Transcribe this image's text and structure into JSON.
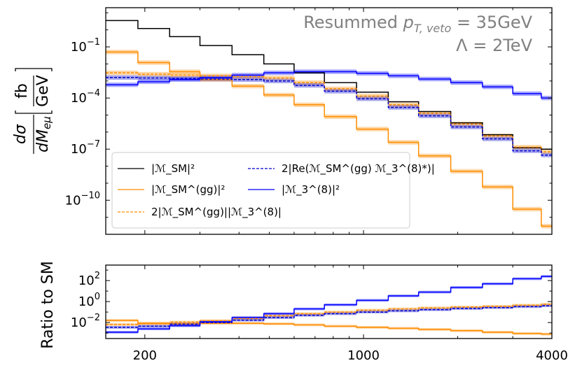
{
  "chart_data": [
    {
      "type": "line",
      "step": true,
      "xscale": "log",
      "yscale": "log",
      "xlim": [
        150,
        4000
      ],
      "ylim": [
        1e-12,
        20
      ],
      "annotation": [
        "Resummed p_T,veto = 35GeV",
        "Λ = 2TeV"
      ],
      "ylabel": "dσ/dM_eμ [fb/GeV]",
      "ytick_labels": [
        "10^-1",
        "10^-4",
        "10^-7",
        "10^-10"
      ],
      "legend_position": "lower-left",
      "bin_edges": [
        150,
        190,
        240,
        300,
        380,
        480,
        600,
        750,
        950,
        1200,
        1500,
        1900,
        2400,
        3000,
        3700,
        4000
      ],
      "series": [
        {
          "name": "|M_SM|^2",
          "color": "#000000",
          "dash": "solid",
          "band": false,
          "values": [
            3.5,
            1.2,
            0.4,
            0.12,
            0.035,
            0.01,
            0.003,
            0.0008,
            0.00022,
            6e-05,
            1.6e-05,
            3.5e-06,
            7e-07,
            1.2e-07,
            1e-07
          ]
        },
        {
          "name": "|M_SM^(gg)|^2",
          "color": "#ff8c00",
          "dash": "solid",
          "band": true,
          "values": [
            0.05,
            0.012,
            0.0035,
            0.0012,
            0.0005,
            0.00015,
            4e-05,
            8e-06,
            1.5e-06,
            2.5e-07,
            4e-08,
            5e-09,
            6e-10,
            3e-11,
            3e-12
          ]
        },
        {
          "name": "2|M_SM^(gg)||M_3^(8)|",
          "color": "#ff8c00",
          "dash": "dashed",
          "band": true,
          "values": [
            0.003,
            0.0025,
            0.0022,
            0.002,
            0.0018,
            0.0015,
            0.0008,
            0.00035,
            0.00013,
            4e-05,
            1.3e-05,
            3e-06,
            6e-07,
            1.3e-07,
            7e-08
          ]
        },
        {
          "name": "2|Re(M_SM^(gg) M_3^(8)*)|",
          "color": "#0000cc",
          "dash": "dashed",
          "band": true,
          "values": [
            0.0016,
            0.0015,
            0.0014,
            0.0013,
            0.0012,
            0.001,
            0.00055,
            0.00025,
            9e-05,
            2.8e-05,
            9e-06,
            2e-06,
            4e-07,
            8e-08,
            4.5e-08
          ]
        },
        {
          "name": "|M_3^(8)|^2",
          "color": "#0000ff",
          "dash": "solid",
          "band": true,
          "values": [
            0.0006,
            0.0009,
            0.0012,
            0.0016,
            0.0022,
            0.003,
            0.0035,
            0.0035,
            0.0028,
            0.002,
            0.0013,
            0.0008,
            0.00045,
            0.00018,
            0.0001
          ]
        }
      ],
      "legend": [
        "|ℳ_SM|²",
        "|ℳ_SM^(gg)|²",
        "2|ℳ_SM^(gg)||ℳ_3^(8)|",
        "2|Re(ℳ_SM^(gg) ℳ_3^(8)*)|",
        "|ℳ_3^(8)|²"
      ]
    },
    {
      "type": "line",
      "step": true,
      "xscale": "log",
      "yscale": "log",
      "xlim": [
        150,
        4000
      ],
      "ylim": [
        0.0003,
        3000
      ],
      "ylabel": "Ratio to SM",
      "xtick_labels": [
        "200",
        "1000",
        "4000"
      ],
      "ytick_labels": [
        "10^2",
        "10^0",
        "10^-2"
      ],
      "bin_edges": [
        150,
        190,
        240,
        300,
        380,
        480,
        600,
        750,
        950,
        1200,
        1500,
        1900,
        2400,
        3000,
        3700,
        4000
      ],
      "series": [
        {
          "color": "#ff8c00",
          "dash": "solid",
          "band": true,
          "values": [
            0.016,
            0.0085,
            0.0075,
            0.0085,
            0.0085,
            0.0075,
            0.006,
            0.0045,
            0.0035,
            0.0028,
            0.0022,
            0.0017,
            0.0012,
            0.0009,
            0.0008
          ]
        },
        {
          "color": "#ff8c00",
          "dash": "dashed",
          "band": true,
          "values": [
            0.0065,
            0.008,
            0.011,
            0.015,
            0.025,
            0.045,
            0.07,
            0.1,
            0.15,
            0.2,
            0.25,
            0.3,
            0.35,
            0.45,
            0.55
          ]
        },
        {
          "color": "#0000cc",
          "dash": "dashed",
          "band": true,
          "values": [
            0.0035,
            0.0045,
            0.007,
            0.01,
            0.017,
            0.03,
            0.05,
            0.07,
            0.1,
            0.13,
            0.17,
            0.22,
            0.27,
            0.33,
            0.4
          ]
        },
        {
          "color": "#0000ff",
          "dash": "solid",
          "band": true,
          "values": [
            0.0012,
            0.0025,
            0.005,
            0.012,
            0.03,
            0.07,
            0.2,
            0.5,
            1.3,
            3.5,
            8,
            22,
            50,
            150,
            250
          ]
        }
      ]
    }
  ]
}
